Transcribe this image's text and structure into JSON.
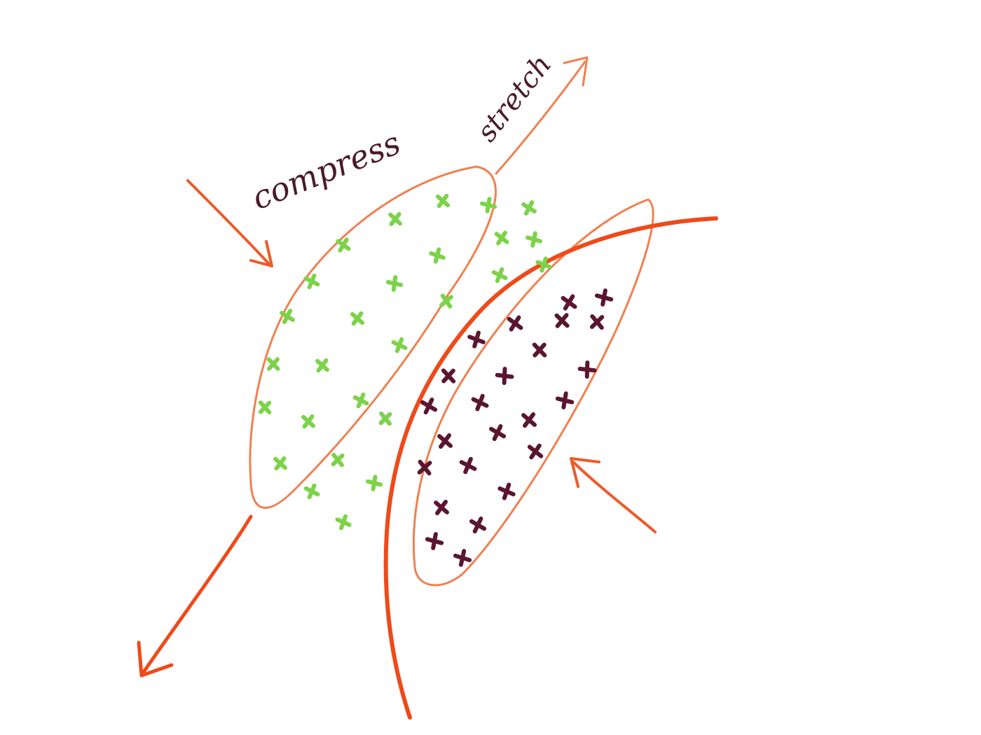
{
  "labels": {
    "compress": "compress",
    "stretch": "stretch"
  },
  "colors": {
    "background": "#ffffff",
    "stroke": "#ee5a2a",
    "stroke_light": "#f28a5a",
    "green_point": "#7cd34a",
    "dark_point": "#5a1630",
    "text": "#4a1a2a"
  },
  "icons": {
    "green_marker": "green-cross-marker",
    "dark_marker": "dark-cross-marker",
    "arrow": "arrow-icon"
  }
}
